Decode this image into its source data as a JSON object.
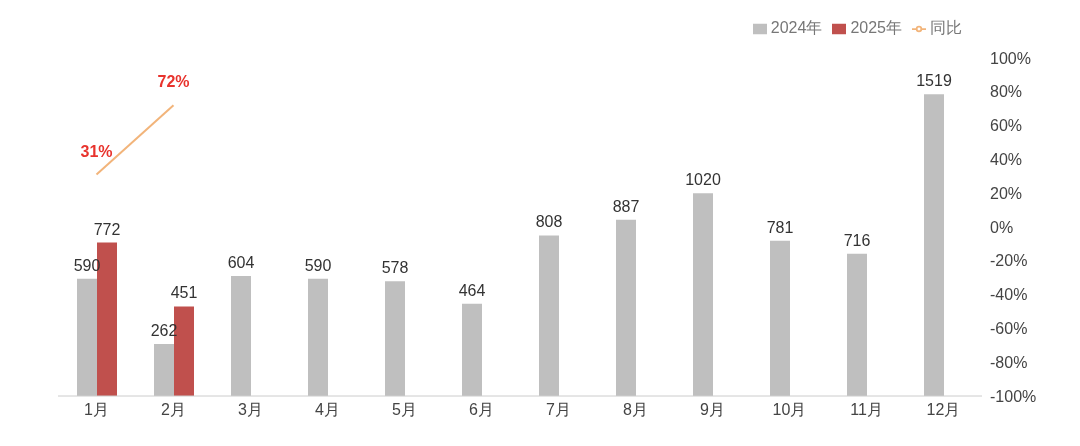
{
  "chart_data": {
    "type": "bar",
    "categories": [
      "1月",
      "2月",
      "3月",
      "4月",
      "5月",
      "6月",
      "7月",
      "8月",
      "9月",
      "10月",
      "11月",
      "12月"
    ],
    "series": [
      {
        "name": "2024年",
        "color": "#bfbfbf",
        "values": [
          590,
          262,
          604,
          590,
          578,
          464,
          808,
          887,
          1020,
          781,
          716,
          1519
        ]
      },
      {
        "name": "2025年",
        "color": "#c0504d",
        "values": [
          772,
          451,
          null,
          null,
          null,
          null,
          null,
          null,
          null,
          null,
          null,
          null
        ]
      },
      {
        "name": "同比",
        "type": "line",
        "axis": "y2",
        "color": "#f2b47a",
        "values": [
          31,
          72,
          null,
          null,
          null,
          null,
          null,
          null,
          null,
          null,
          null,
          null
        ],
        "value_labels": [
          "31%",
          "72%",
          null,
          null,
          null,
          null,
          null,
          null,
          null,
          null,
          null,
          null
        ]
      }
    ],
    "y2lim": [
      -100,
      100
    ],
    "y2ticks": [
      {
        "value": -100,
        "label": "-100%"
      },
      {
        "value": -80,
        "label": "-80%"
      },
      {
        "value": -60,
        "label": "-60%"
      },
      {
        "value": -40,
        "label": "-40%"
      },
      {
        "value": -20,
        "label": "-20%"
      },
      {
        "value": 0,
        "label": "0%"
      },
      {
        "value": 20,
        "label": "20%"
      },
      {
        "value": 40,
        "label": "40%"
      },
      {
        "value": 60,
        "label": "60%"
      },
      {
        "value": 80,
        "label": "80%"
      },
      {
        "value": 100,
        "label": "100%"
      }
    ],
    "data_labels": true,
    "legend": "top right",
    "grid": false,
    "marker": "none"
  }
}
